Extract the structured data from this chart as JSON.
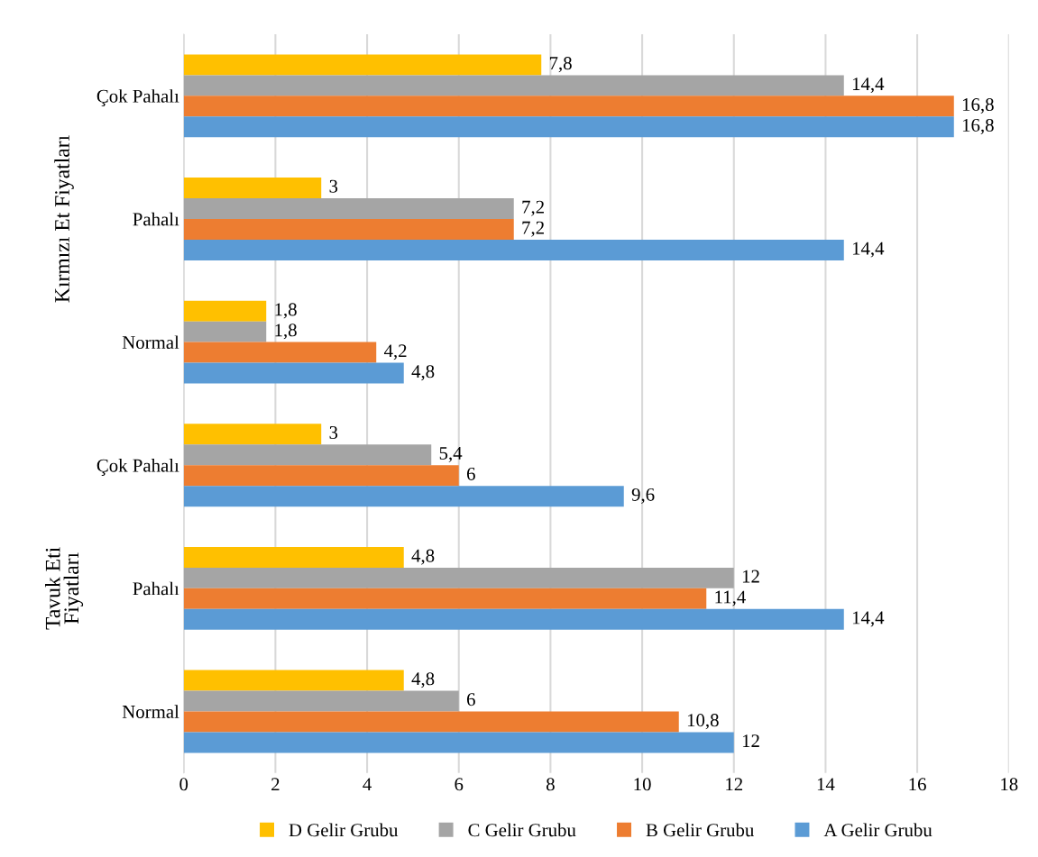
{
  "chart_data": {
    "type": "bar",
    "orientation": "horizontal",
    "categories": [
      "Çok Pahalı",
      "Pahalı",
      "Normal",
      "Çok Pahalı",
      "Pahalı",
      "Normal"
    ],
    "series": [
      {
        "name": "D Gelir Grubu",
        "color": "#ffc000",
        "values": [
          7.8,
          3,
          1.8,
          3,
          4.8,
          4.8
        ],
        "value_labels": [
          "7,8",
          "3",
          "1,8",
          "3",
          "4,8",
          "4,8"
        ]
      },
      {
        "name": "C Gelir Grubu",
        "color": "#a5a5a5",
        "values": [
          14.4,
          7.2,
          1.8,
          5.4,
          12,
          6
        ],
        "value_labels": [
          "14,4",
          "7,2",
          "1,8",
          "5,4",
          "12",
          "6"
        ]
      },
      {
        "name": "B Gelir Grubu",
        "color": "#ed7d31",
        "values": [
          16.8,
          7.2,
          4.2,
          6,
          11.4,
          10.8
        ],
        "value_labels": [
          "16,8",
          "7,2",
          "4,2",
          "6",
          "11,4",
          "10,8"
        ]
      },
      {
        "name": "A Gelir Grubu",
        "color": "#5b9bd5",
        "values": [
          16.8,
          14.4,
          4.8,
          9.6,
          14.4,
          12
        ],
        "value_labels": [
          "16,8",
          "14,4",
          "4,8",
          "9,6",
          "14,4",
          "12"
        ]
      }
    ],
    "xlim": [
      0,
      18
    ],
    "xticks": [
      0,
      2,
      4,
      6,
      8,
      10,
      12,
      14,
      16,
      18
    ],
    "annotations": [
      "Kırmızı Et Fiyatları",
      "Tavuk Eti\nFiyatları"
    ],
    "grid": "x",
    "legend": "bottom"
  }
}
